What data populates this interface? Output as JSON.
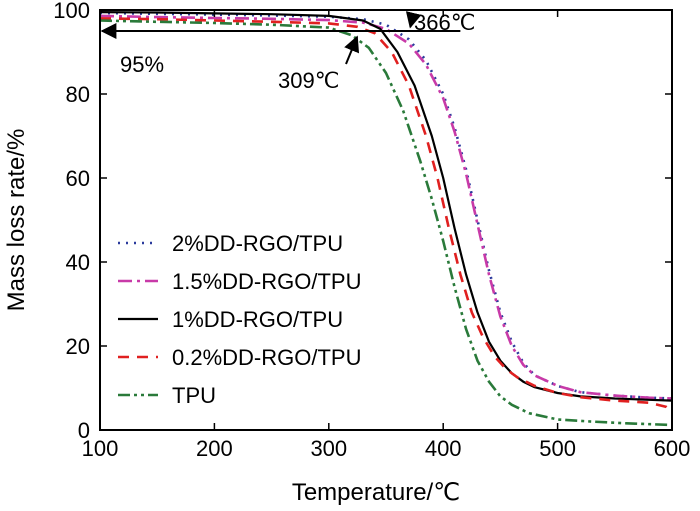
{
  "chart_data": {
    "type": "line",
    "title": "",
    "xlabel": "Temperature/℃",
    "ylabel": "Mass loss rate/%",
    "xlim": [
      100,
      600
    ],
    "ylim": [
      0,
      100
    ],
    "xticks": [
      "100",
      "200",
      "300",
      "400",
      "500",
      "600"
    ],
    "yticks": [
      "0",
      "20",
      "40",
      "60",
      "80",
      "100"
    ],
    "grid": false,
    "legend_position": "lower-left",
    "series": [
      {
        "name": "2%DD-RGO/TPU",
        "color": "#2a3a9c",
        "dash": "dot",
        "x": [
          100,
          150,
          200,
          250,
          300,
          330,
          350,
          370,
          385,
          400,
          410,
          420,
          430,
          440,
          450,
          460,
          470,
          480,
          500,
          520,
          550,
          580,
          600
        ],
        "y": [
          99.3,
          99.1,
          98.9,
          98.7,
          98.4,
          97.8,
          96.5,
          93,
          88,
          80,
          72,
          62,
          50,
          38,
          28,
          21,
          16,
          13,
          10.5,
          9,
          8.2,
          7.7,
          7.5
        ]
      },
      {
        "name": "1.5%DD-RGO/TPU",
        "color": "#c83aa8",
        "dash": "dashdot",
        "x": [
          100,
          150,
          200,
          250,
          300,
          330,
          350,
          370,
          385,
          400,
          410,
          420,
          430,
          440,
          450,
          460,
          470,
          480,
          500,
          520,
          550,
          580,
          600
        ],
        "y": [
          98.6,
          98.3,
          98.1,
          97.9,
          97.6,
          97,
          95.5,
          92,
          87,
          79,
          71,
          61,
          49,
          37,
          27,
          20,
          15.5,
          13,
          10.5,
          9,
          8.2,
          7.7,
          7.5
        ]
      },
      {
        "name": "1%DD-RGO/TPU",
        "color": "#000000",
        "dash": "solid",
        "x": [
          100,
          150,
          200,
          250,
          300,
          330,
          345,
          360,
          375,
          390,
          400,
          410,
          420,
          430,
          440,
          450,
          460,
          470,
          480,
          500,
          520,
          550,
          580,
          600
        ],
        "y": [
          99.5,
          99.4,
          99.2,
          99,
          98.6,
          97.5,
          95.5,
          90,
          82,
          70,
          60,
          48,
          37,
          28,
          21,
          16.5,
          13.5,
          11.5,
          10.2,
          8.8,
          8,
          7.5,
          7.2,
          7
        ]
      },
      {
        "name": "0.2%DD-RGO/TPU",
        "color": "#e02020",
        "dash": "dash",
        "x": [
          100,
          150,
          200,
          250,
          300,
          325,
          340,
          355,
          370,
          385,
          395,
          405,
          415,
          425,
          435,
          445,
          455,
          465,
          480,
          500,
          520,
          550,
          580,
          595,
          600
        ],
        "y": [
          98,
          97.8,
          97.5,
          97.2,
          96.8,
          96,
          94.5,
          90,
          82,
          70,
          60,
          48,
          37,
          28,
          22,
          17.5,
          14.5,
          12.5,
          10.5,
          8.8,
          7.8,
          7,
          6.5,
          5.5,
          4.5
        ]
      },
      {
        "name": "TPU",
        "color": "#2a7a3a",
        "dash": "dashdotdot",
        "x": [
          100,
          150,
          200,
          250,
          300,
          320,
          335,
          350,
          365,
          380,
          390,
          400,
          410,
          420,
          430,
          440,
          450,
          460,
          475,
          500,
          530,
          560,
          600
        ],
        "y": [
          97.5,
          97.2,
          96.9,
          96.5,
          95.8,
          94,
          91,
          85,
          76,
          64,
          55,
          45,
          34,
          24,
          16.5,
          11.5,
          8,
          6,
          4,
          2.5,
          2,
          1.6,
          1.2
        ]
      }
    ],
    "annotations": [
      {
        "text": "366℃",
        "x": 366,
        "y": 95
      },
      {
        "text": "309℃",
        "x": 309,
        "y": 95
      },
      {
        "text": "95%",
        "x": 100,
        "y": 95
      }
    ],
    "reference_line": {
      "y": 95,
      "x_from": 100,
      "x_to": 415
    }
  }
}
